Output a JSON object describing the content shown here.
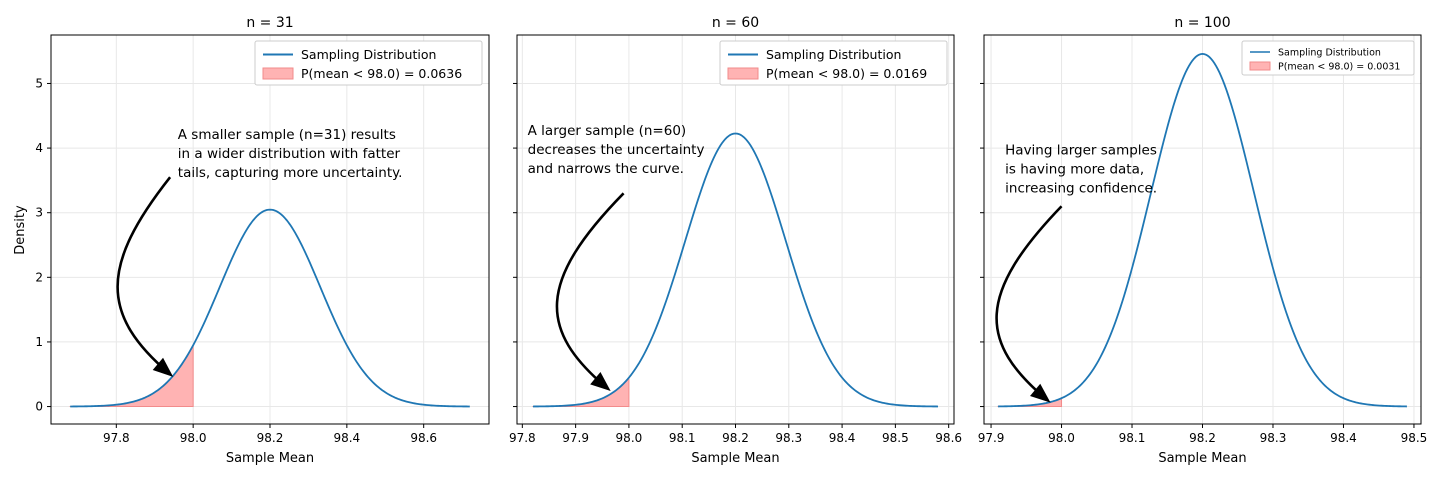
{
  "figure": {
    "ylabel": "Density",
    "xlabel": "Sample Mean"
  },
  "chart_data": [
    {
      "type": "line",
      "title": "n = 31",
      "n": 31,
      "population_mean": 98.2,
      "std_error": 0.1309,
      "xlim": [
        97.63,
        98.77
      ],
      "ylim": [
        -0.27,
        5.75
      ],
      "xticks": [
        "97.8",
        "98.0",
        "98.2",
        "98.4",
        "98.6"
      ],
      "xtick_values": [
        97.8,
        98.0,
        98.2,
        98.4,
        98.6
      ],
      "yticks": [
        "0",
        "1",
        "2",
        "3",
        "4",
        "5"
      ],
      "ytick_values": [
        0,
        1,
        2,
        3,
        4,
        5
      ],
      "x_range": [
        97.68,
        98.72
      ],
      "peak_density": 3.05,
      "threshold": 98.0,
      "probability": 0.0636,
      "legend": {
        "position": "upper right",
        "line": "Sampling Distribution",
        "area": "P(mean < 98.0) = 0.0636"
      },
      "annotation": {
        "lines": [
          "A smaller sample (n=31) results",
          "in a wider distribution with fatter",
          "tails, capturing more uncertainty."
        ],
        "text_at": [
          97.96,
          4.14
        ],
        "arrow_from": [
          97.94,
          3.55
        ],
        "arrow_to": [
          97.94,
          0.5
        ]
      },
      "grid": true
    },
    {
      "type": "line",
      "title": "n = 60",
      "n": 60,
      "population_mean": 98.2,
      "std_error": 0.0944,
      "xlim": [
        97.79,
        98.61
      ],
      "ylim": [
        -0.27,
        5.75
      ],
      "xticks": [
        "97.8",
        "97.9",
        "98.0",
        "98.1",
        "98.2",
        "98.3",
        "98.4",
        "98.5",
        "98.6"
      ],
      "xtick_values": [
        97.8,
        97.9,
        98.0,
        98.1,
        98.2,
        98.3,
        98.4,
        98.5,
        98.6
      ],
      "yticks": [
        "0",
        "1",
        "2",
        "3",
        "4",
        "5"
      ],
      "ytick_values": [
        0,
        1,
        2,
        3,
        4,
        5
      ],
      "x_range": [
        97.82,
        98.58
      ],
      "peak_density": 4.23,
      "threshold": 98.0,
      "probability": 0.0169,
      "legend": {
        "position": "upper right",
        "line": "Sampling Distribution",
        "area": "P(mean < 98.0) = 0.0169"
      },
      "annotation": {
        "lines": [
          "A larger sample (n=60)",
          "decreases the uncertainty",
          "and narrows the curve."
        ],
        "text_at": [
          97.81,
          4.2
        ],
        "arrow_from": [
          97.99,
          3.3
        ],
        "arrow_to": [
          97.96,
          0.28
        ]
      },
      "grid": true
    },
    {
      "type": "line",
      "title": "n = 100",
      "n": 100,
      "population_mean": 98.2,
      "std_error": 0.0731,
      "xlim": [
        97.89,
        98.51
      ],
      "ylim": [
        -0.27,
        5.75
      ],
      "xticks": [
        "97.9",
        "98.0",
        "98.1",
        "98.2",
        "98.3",
        "98.4",
        "98.5"
      ],
      "xtick_values": [
        97.9,
        98.0,
        98.1,
        98.2,
        98.3,
        98.4,
        98.5
      ],
      "yticks": [
        "0",
        "1",
        "2",
        "3",
        "4",
        "5"
      ],
      "ytick_values": [
        0,
        1,
        2,
        3,
        4,
        5
      ],
      "x_range": [
        97.91,
        98.49
      ],
      "peak_density": 5.46,
      "threshold": 98.0,
      "probability": 0.0031,
      "legend": {
        "position": "upper right",
        "line": "Sampling Distribution",
        "area": "P(mean < 98.0) = 0.0031"
      },
      "annotation": {
        "lines": [
          "Having larger samples",
          "is having more data,",
          "increasing confidence."
        ],
        "text_at": [
          97.92,
          3.9
        ],
        "arrow_from": [
          98.0,
          3.1
        ],
        "arrow_to": [
          97.98,
          0.1
        ]
      },
      "grid": true
    }
  ],
  "colors": {
    "line": "#1f77b4",
    "fill": "#ffb3b3",
    "fill_edge": "#f28b8b",
    "grid": "#e8e8e8",
    "axis": "#000000",
    "annotation": "#000000"
  }
}
